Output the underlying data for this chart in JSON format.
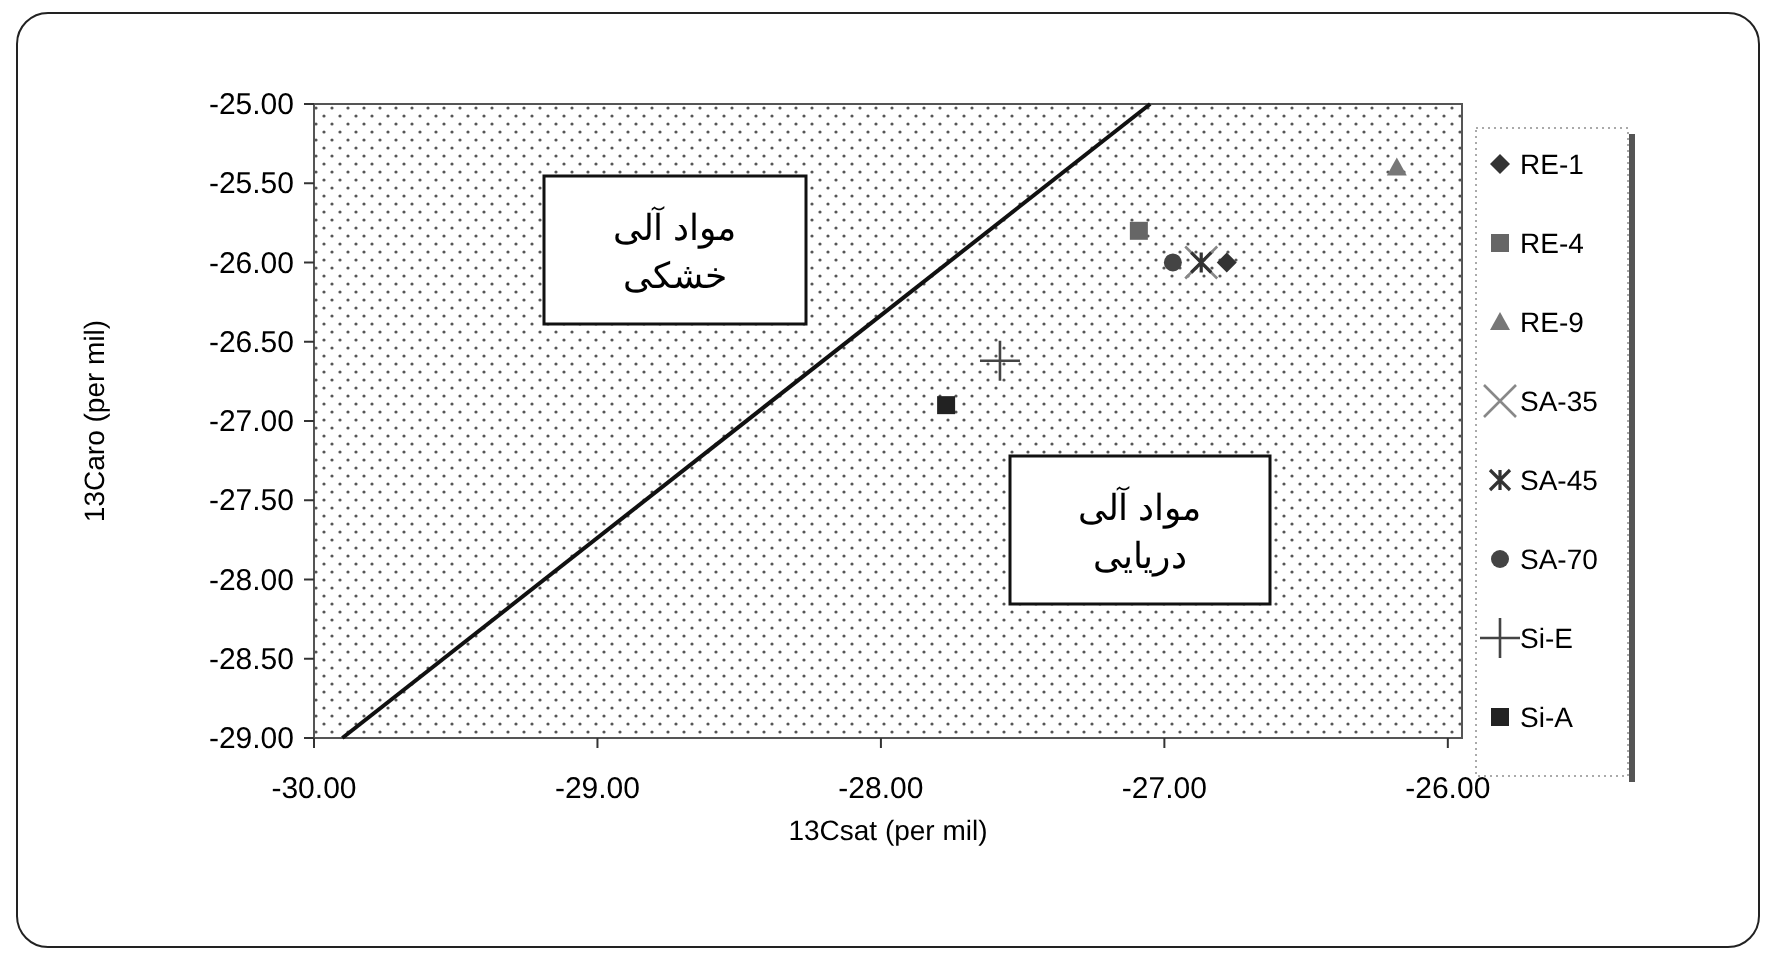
{
  "chart_data": {
    "type": "scatter",
    "xlabel": "13Csat (per mil)",
    "ylabel": "13Caro (per mil)",
    "xlim": [
      -30,
      -25.95
    ],
    "ylim": [
      -29,
      -25
    ],
    "xticks": [
      {
        "value": -30,
        "label": "-30.00"
      },
      {
        "value": -29,
        "label": "-29.00"
      },
      {
        "value": -28,
        "label": "-28.00"
      },
      {
        "value": -27,
        "label": "-27.00"
      },
      {
        "value": -26,
        "label": "-26.00"
      }
    ],
    "yticks": [
      {
        "value": -29,
        "label": "-29.00"
      },
      {
        "value": -28.5,
        "label": "-28.50"
      },
      {
        "value": -28,
        "label": "-28.00"
      },
      {
        "value": -27.5,
        "label": "-27.50"
      },
      {
        "value": -27,
        "label": "-27.00"
      },
      {
        "value": -26.5,
        "label": "-26.50"
      },
      {
        "value": -26,
        "label": "-26.00"
      },
      {
        "value": -25.5,
        "label": "-25.50"
      },
      {
        "value": -25,
        "label": "-25.00"
      }
    ],
    "grid": false,
    "legend": "right",
    "series": [
      {
        "type": "line",
        "color": "#111111",
        "x": [
          -29.9,
          -27.05
        ],
        "values": [
          -29,
          -25
        ],
        "marker": "none",
        "line_style": "solid"
      },
      {
        "name": "RE-1",
        "color": "#333333",
        "marker": "diamond",
        "x": [
          -26.78
        ],
        "values": [
          -26.0
        ]
      },
      {
        "name": "RE-4",
        "color": "#666666",
        "marker": "square",
        "x": [
          -27.09
        ],
        "values": [
          -25.8
        ]
      },
      {
        "name": "RE-9",
        "color": "#777777",
        "marker": "triangle",
        "x": [
          -26.18
        ],
        "values": [
          -25.4
        ]
      },
      {
        "name": "SA-35",
        "color": "#888888",
        "marker": "x",
        "x": [
          -26.87
        ],
        "values": [
          -26.0
        ]
      },
      {
        "name": "SA-45",
        "color": "#333333",
        "marker": "cross",
        "x": [
          -26.87
        ],
        "values": [
          -26.0
        ]
      },
      {
        "name": "SA-70",
        "color": "#444444",
        "marker": "circle",
        "x": [
          -26.97
        ],
        "values": [
          -26.0
        ]
      },
      {
        "name": "Si-E",
        "color": "#444444",
        "marker": "plus",
        "x": [
          -27.58
        ],
        "values": [
          -26.62
        ]
      },
      {
        "name": "Si-A",
        "color": "#222222",
        "marker": "square",
        "x": [
          -27.77
        ],
        "values": [
          -26.9
        ]
      }
    ],
    "annotations": [
      "مواد آلی\nخشکی",
      "مواد آلی\nدریایی"
    ]
  }
}
